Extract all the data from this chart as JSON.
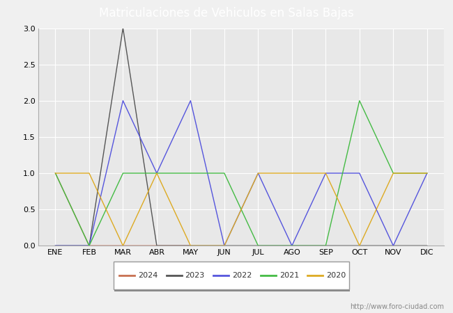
{
  "title": "Matriculaciones de Vehiculos en Salas Bajas",
  "months": [
    "ENE",
    "FEB",
    "MAR",
    "ABR",
    "MAY",
    "JUN",
    "JUL",
    "AGO",
    "SEP",
    "OCT",
    "NOV",
    "DIC"
  ],
  "series": {
    "2024": [
      1,
      0,
      0,
      0,
      0,
      null,
      null,
      null,
      null,
      null,
      null,
      null
    ],
    "2023": [
      0,
      0,
      3,
      0,
      0,
      0,
      0,
      0,
      0,
      0,
      0,
      0
    ],
    "2022": [
      0,
      0,
      2,
      1,
      2,
      0,
      1,
      0,
      1,
      1,
      0,
      1
    ],
    "2021": [
      1,
      0,
      1,
      1,
      1,
      1,
      0,
      0,
      0,
      2,
      1,
      1
    ],
    "2020": [
      1,
      1,
      0,
      1,
      0,
      0,
      1,
      1,
      1,
      0,
      1,
      1
    ]
  },
  "colors": {
    "2024": "#c87050",
    "2023": "#555555",
    "2022": "#5555dd",
    "2021": "#44bb44",
    "2020": "#ddaa22"
  },
  "ylim": [
    0,
    3.0
  ],
  "yticks": [
    0.0,
    0.5,
    1.0,
    1.5,
    2.0,
    2.5,
    3.0
  ],
  "title_bg_color": "#5b9bd5",
  "plot_bg_color": "#e8e8e8",
  "fig_bg_color": "#f0f0f0",
  "grid_color": "#ffffff",
  "watermark": "http://www.foro-ciudad.com"
}
